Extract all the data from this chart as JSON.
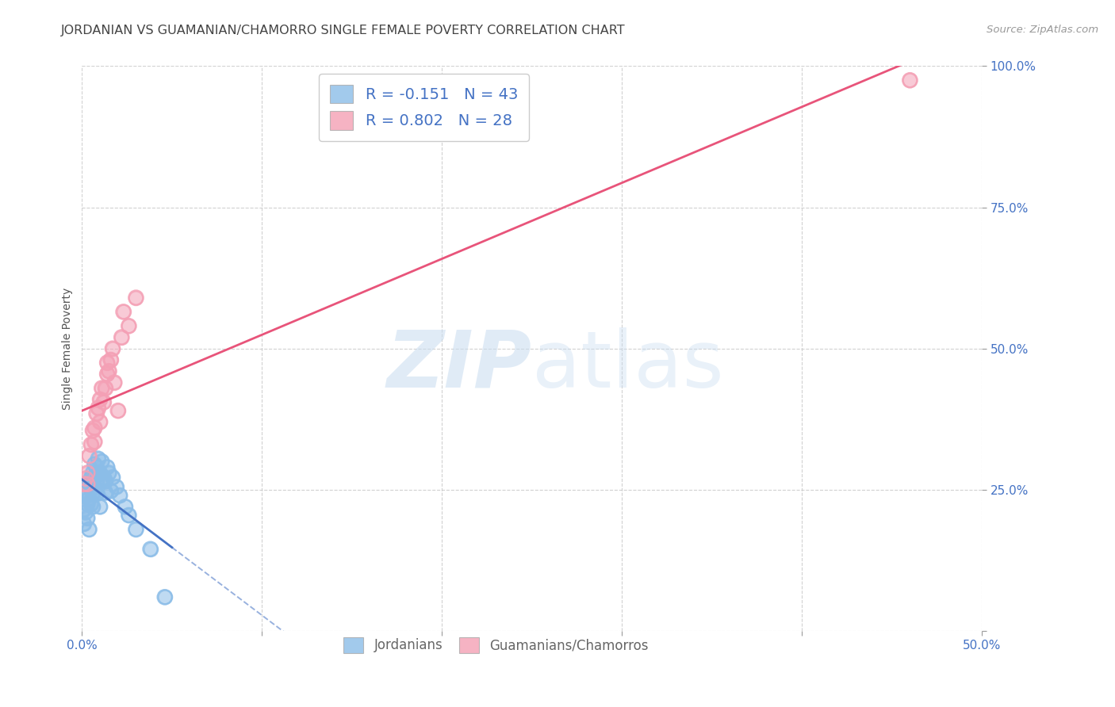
{
  "title": "JORDANIAN VS GUAMANIAN/CHAMORRO SINGLE FEMALE POVERTY CORRELATION CHART",
  "source": "Source: ZipAtlas.com",
  "ylabel": "Single Female Poverty",
  "xlim": [
    0,
    0.5
  ],
  "ylim": [
    0,
    1.0
  ],
  "xticks_major": [
    0.0,
    0.1,
    0.2,
    0.3,
    0.4,
    0.5
  ],
  "xticks_minor": [
    0.05,
    0.15,
    0.25,
    0.35,
    0.45
  ],
  "yticks": [
    0.0,
    0.25,
    0.5,
    0.75,
    1.0
  ],
  "x_label_only_ends": true,
  "jordanian_color": "#8BBDE8",
  "guamanian_color": "#F4A0B5",
  "jordanian_line_color": "#4472C4",
  "guamanian_line_color": "#E8547A",
  "R_jordanian": -0.151,
  "N_jordanian": 43,
  "R_guamanian": 0.802,
  "N_guamanian": 28,
  "legend_label_1": "Jordanians",
  "legend_label_2": "Guamanians/Chamorros",
  "background_color": "#ffffff",
  "grid_color": "#cccccc",
  "tick_color": "#4472C4",
  "title_color": "#444444",
  "title_fontsize": 11.5,
  "axis_label_fontsize": 10,
  "tick_fontsize": 11,
  "legend_fontsize": 14,
  "legend_R_color": "#4472C4",
  "jordanian_x": [
    0.001,
    0.001,
    0.002,
    0.002,
    0.003,
    0.003,
    0.003,
    0.004,
    0.004,
    0.004,
    0.005,
    0.005,
    0.005,
    0.006,
    0.006,
    0.006,
    0.006,
    0.007,
    0.007,
    0.007,
    0.008,
    0.008,
    0.008,
    0.009,
    0.009,
    0.01,
    0.01,
    0.011,
    0.011,
    0.012,
    0.013,
    0.013,
    0.014,
    0.015,
    0.016,
    0.017,
    0.019,
    0.021,
    0.024,
    0.026,
    0.03,
    0.038,
    0.046
  ],
  "jordanian_y": [
    0.215,
    0.19,
    0.245,
    0.21,
    0.24,
    0.225,
    0.2,
    0.26,
    0.235,
    0.18,
    0.27,
    0.252,
    0.225,
    0.28,
    0.26,
    0.243,
    0.22,
    0.295,
    0.272,
    0.248,
    0.29,
    0.265,
    0.243,
    0.305,
    0.278,
    0.28,
    0.22,
    0.3,
    0.267,
    0.272,
    0.265,
    0.245,
    0.29,
    0.28,
    0.248,
    0.272,
    0.255,
    0.24,
    0.22,
    0.205,
    0.18,
    0.145,
    0.06
  ],
  "guamanian_x": [
    0.001,
    0.002,
    0.003,
    0.003,
    0.004,
    0.005,
    0.006,
    0.007,
    0.007,
    0.008,
    0.009,
    0.01,
    0.01,
    0.011,
    0.012,
    0.013,
    0.014,
    0.014,
    0.015,
    0.016,
    0.017,
    0.018,
    0.02,
    0.022,
    0.023,
    0.026,
    0.03,
    0.46
  ],
  "guamanian_y": [
    0.26,
    0.27,
    0.28,
    0.26,
    0.31,
    0.33,
    0.355,
    0.36,
    0.335,
    0.385,
    0.395,
    0.37,
    0.41,
    0.43,
    0.405,
    0.43,
    0.455,
    0.475,
    0.46,
    0.48,
    0.5,
    0.44,
    0.39,
    0.52,
    0.565,
    0.54,
    0.59,
    0.975
  ],
  "jord_trendline_x_solid_end": 0.05,
  "jord_trendline_x_dash_end": 0.5,
  "guam_trendline_x_start": 0.0,
  "guam_trendline_x_end": 0.5
}
